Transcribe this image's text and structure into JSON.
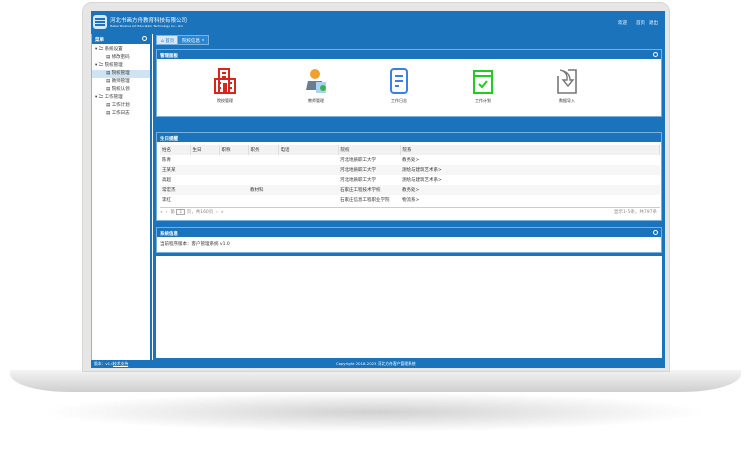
{
  "header": {
    "company_cn": "河北书画方舟教育科技有限公司",
    "company_en": "Hebei Shuhua Art Education Technology Co., Ltd",
    "welcome": "欢迎",
    "home": "首页",
    "logout": "退出"
  },
  "sidebar": {
    "title": "菜单",
    "groups": [
      {
        "label": "系统设置",
        "items": [
          "修改密码"
        ]
      },
      {
        "label": "院校管理",
        "items": [
          "院校管理",
          "教师管理",
          "院校认领"
        ]
      },
      {
        "label": "工作管理",
        "items": [
          "工作计划",
          "工作日志"
        ]
      }
    ]
  },
  "tabs": [
    {
      "label": "首页"
    },
    {
      "label": "院校信息"
    }
  ],
  "panel_manage": {
    "title": "管理面板",
    "icons": [
      {
        "label": "院校管理",
        "color": "#d9261c"
      },
      {
        "label": "教师管理",
        "color": "#f0a030"
      },
      {
        "label": "工作日志",
        "color": "#3a7ee8"
      },
      {
        "label": "工作计划",
        "color": "#22cc22"
      },
      {
        "label": "数据导入",
        "color": "#777777"
      }
    ]
  },
  "panel_birthday": {
    "title": "生日提醒",
    "columns": [
      "姓名",
      "生日",
      "职称",
      "职务",
      "电话",
      "院校",
      "院系"
    ],
    "rows": [
      [
        "陈青",
        "",
        "",
        "",
        "",
        "河北地质职工大学",
        "教务处>"
      ],
      [
        "王某某",
        "",
        "",
        "",
        "",
        "河北地质职工大学",
        "测绘与建筑艺术系>"
      ],
      [
        "高超",
        "",
        "",
        "",
        "",
        "河北地质职工大学",
        "测绘与建筑艺术系>"
      ],
      [
        "常宏杰",
        "",
        "",
        "教材科",
        "",
        "石家庄工程技术学校",
        "教务处>"
      ],
      [
        "李红",
        "",
        "",
        "",
        "",
        "石家庄信息工程职业学院",
        "物流系>"
      ]
    ],
    "pager": {
      "page_prefix": "第",
      "page": "1",
      "page_suffix": "页，共160页",
      "summary": "显示1-5条，共797条"
    }
  },
  "panel_system": {
    "title": "系统信息",
    "text": "当前程序版本：客户管理系统 v1.0"
  },
  "footer": {
    "version": "版本：v1.0",
    "support": "技术支持",
    "copyright": "Copyright 2018-2023 河北方舟客户管理系统"
  }
}
